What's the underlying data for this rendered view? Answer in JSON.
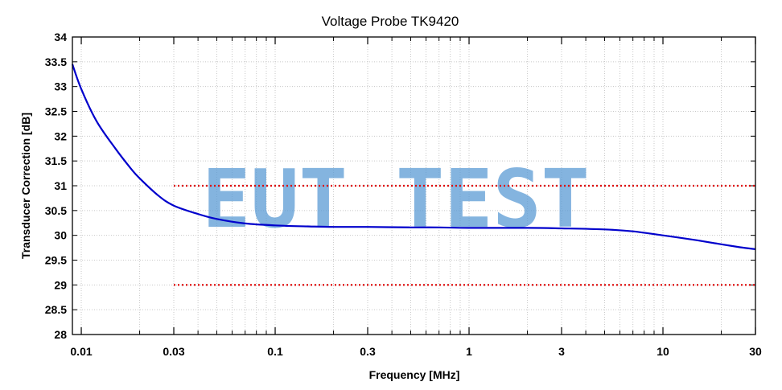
{
  "chart_data": {
    "type": "line",
    "title": "Voltage Probe TK9420",
    "xlabel": "Frequency [MHz]",
    "ylabel": "Transducer Correction [dB]",
    "x_scale": "log",
    "xlim": [
      0.009,
      30
    ],
    "ylim": [
      28,
      34
    ],
    "x_ticks": [
      {
        "value": 0.01,
        "label": "0.01"
      },
      {
        "value": 0.03,
        "label": "0.03"
      },
      {
        "value": 0.1,
        "label": "0.1"
      },
      {
        "value": 0.3,
        "label": "0.3"
      },
      {
        "value": 1,
        "label": "1"
      },
      {
        "value": 3,
        "label": "3"
      },
      {
        "value": 10,
        "label": "10"
      },
      {
        "value": 30,
        "label": "30"
      }
    ],
    "y_ticks": [
      "28",
      "28.5",
      "29",
      "29.5",
      "30",
      "30.5",
      "31",
      "31.5",
      "32",
      "32.5",
      "33",
      "33.5",
      "34"
    ],
    "grid": true,
    "series": [
      {
        "color": "#0000cc",
        "x": [
          0.009,
          0.01,
          0.012,
          0.015,
          0.018,
          0.02,
          0.025,
          0.03,
          0.04,
          0.05,
          0.07,
          0.1,
          0.15,
          0.2,
          0.3,
          0.5,
          0.7,
          1,
          2,
          3,
          5,
          7,
          10,
          15,
          20,
          25,
          30
        ],
        "y": [
          33.45,
          32.95,
          32.3,
          31.75,
          31.35,
          31.15,
          30.8,
          30.6,
          30.43,
          30.33,
          30.24,
          30.2,
          30.18,
          30.17,
          30.17,
          30.16,
          30.16,
          30.15,
          30.15,
          30.14,
          30.12,
          30.08,
          30.0,
          29.9,
          29.82,
          29.76,
          29.72
        ]
      }
    ],
    "limit_lines": [
      {
        "color": "#dd0000",
        "style": "dotted",
        "y": 31,
        "x_range": [
          0.03,
          30
        ]
      },
      {
        "color": "#dd0000",
        "style": "dotted",
        "y": 29,
        "x_range": [
          0.03,
          30
        ]
      }
    ],
    "watermark": "EUT TEST"
  }
}
